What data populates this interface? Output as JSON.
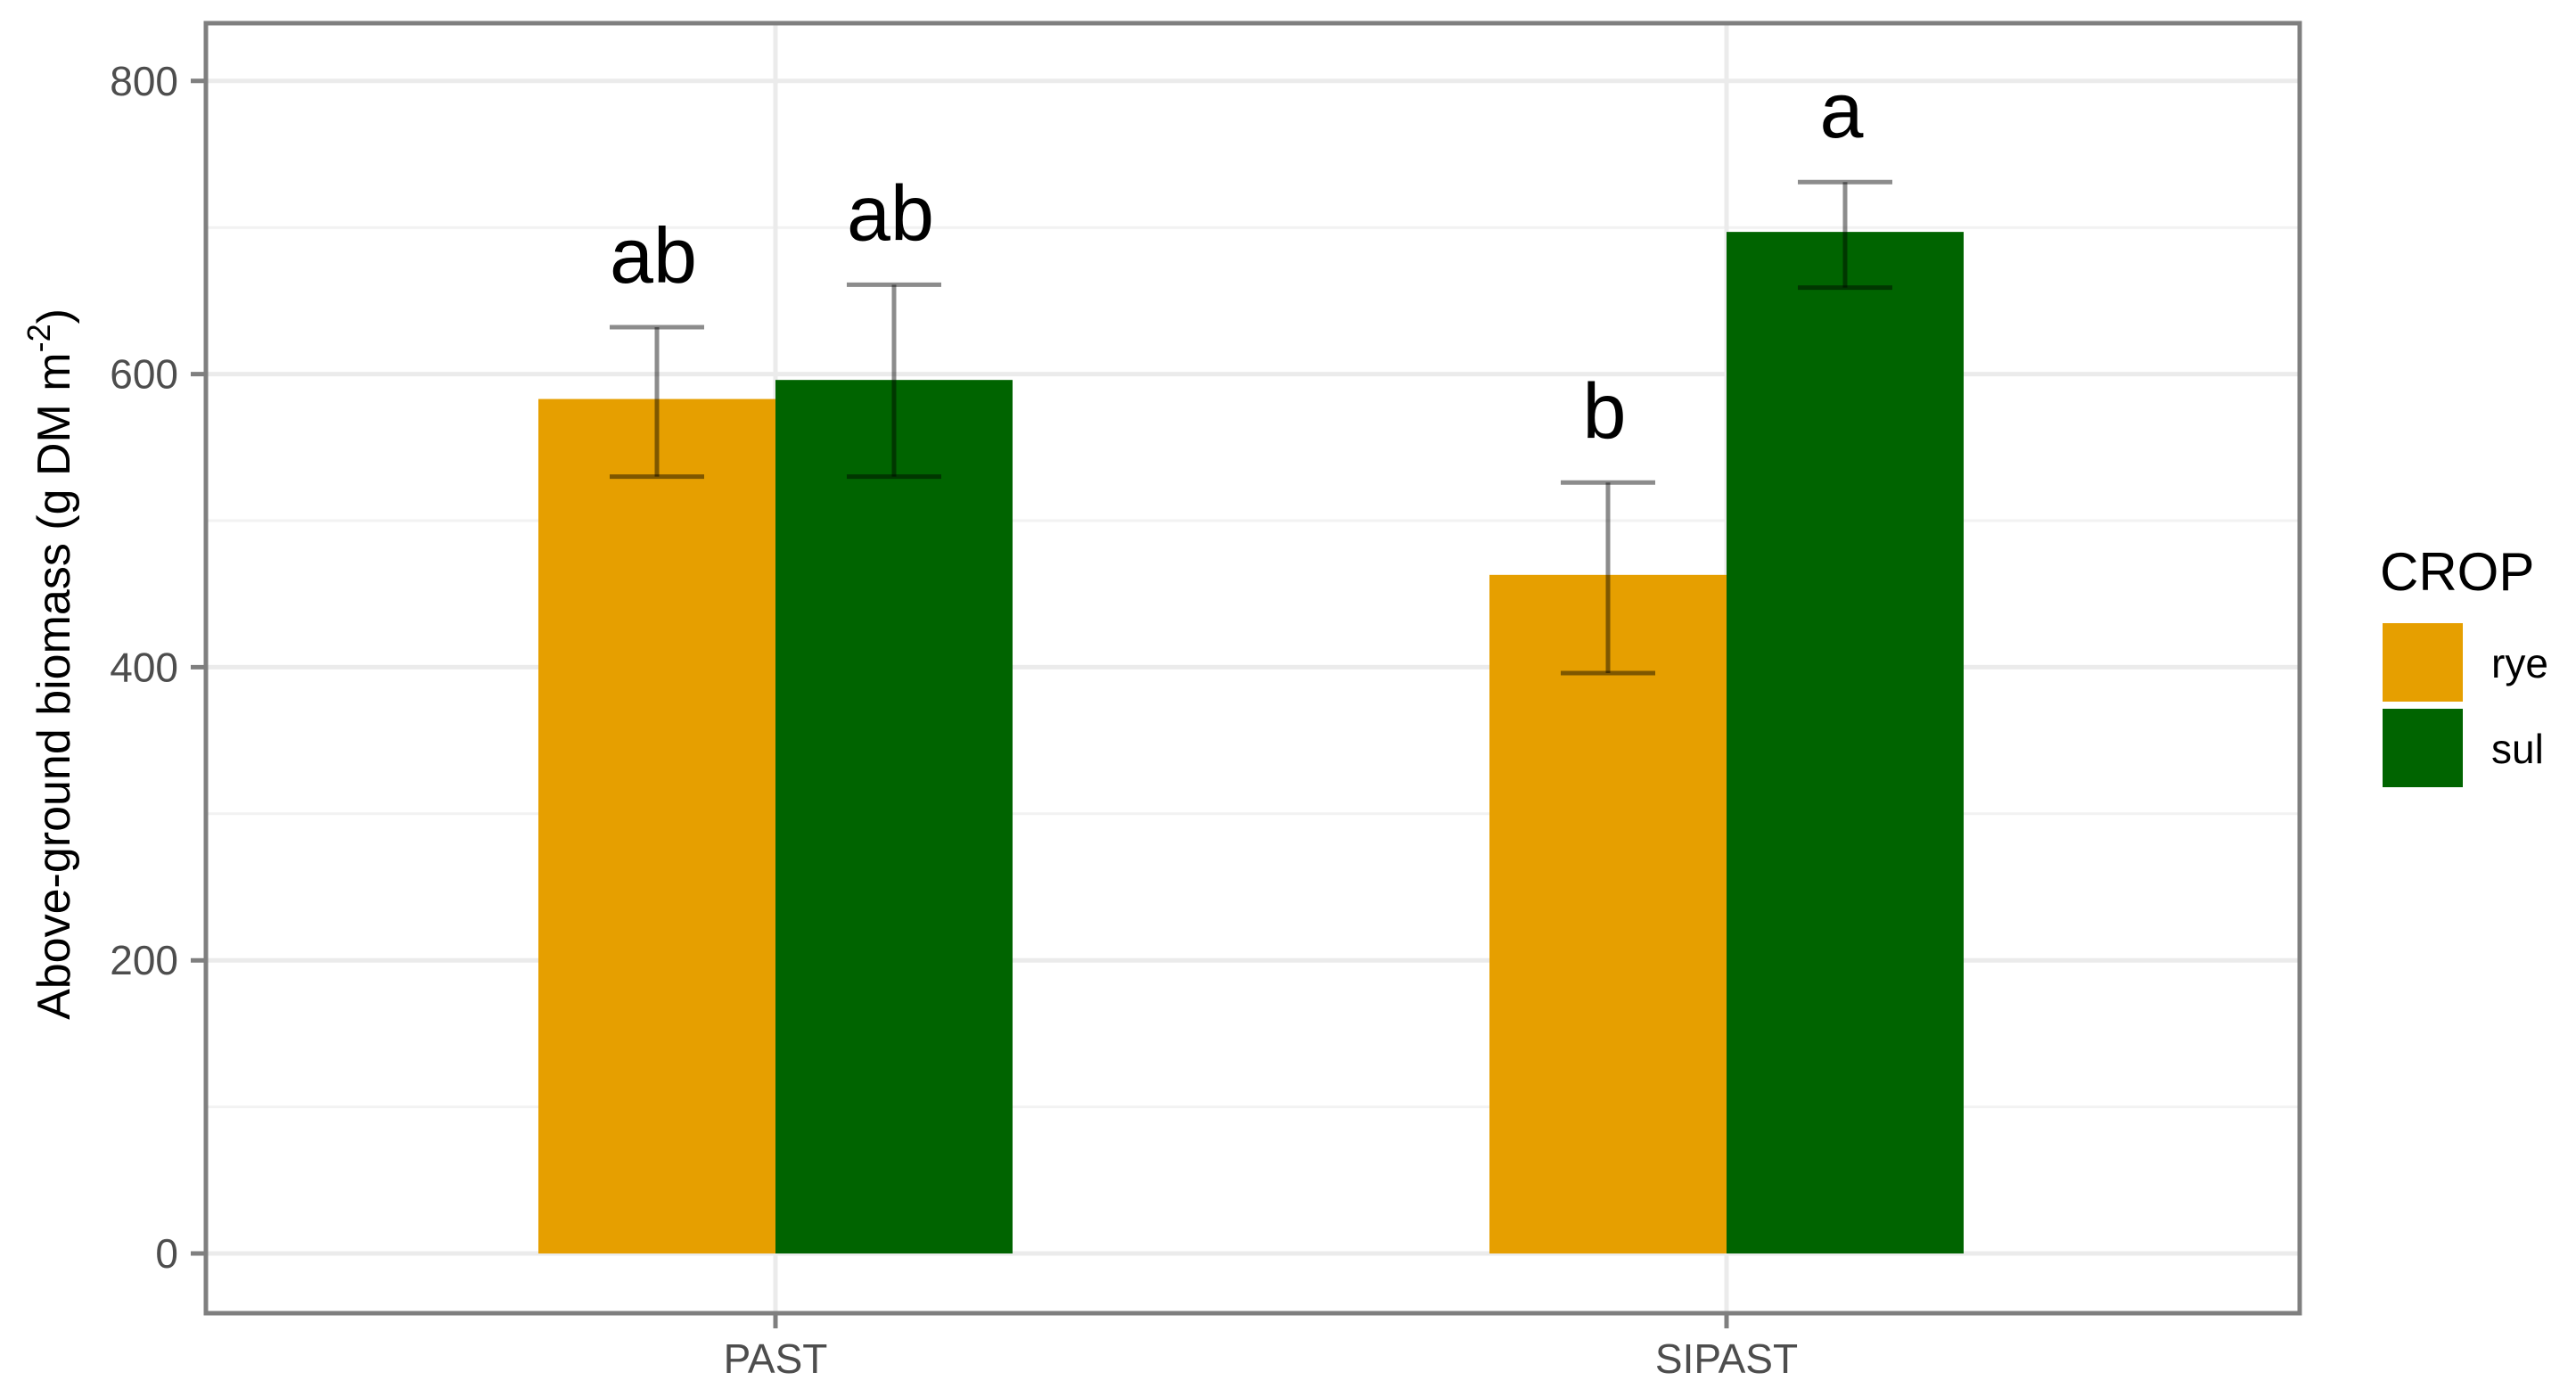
{
  "chart_data": {
    "type": "bar",
    "title": "",
    "xlabel": "",
    "ylabel": "Above-ground biomass  (g DM m",
    "ylabel_superscript": "-2",
    "ylabel_close": ")",
    "ylim": [
      0,
      800
    ],
    "yticks": [
      0,
      200,
      400,
      600,
      800
    ],
    "ytick_labels": [
      "0",
      "200",
      "400",
      "600",
      "800"
    ],
    "minor_gridlines": [
      100,
      300,
      500,
      700
    ],
    "grid": true,
    "categories": [
      "PAST",
      "SIPAST"
    ],
    "series": [
      {
        "name": "rye",
        "color": "#E69F00",
        "values": [
          583,
          463
        ],
        "error_low": [
          530,
          396
        ],
        "error_high": [
          632,
          526
        ],
        "significance": [
          "ab",
          "b"
        ]
      },
      {
        "name": "sul",
        "color": "#006400",
        "values": [
          596,
          697
        ],
        "error_low": [
          530,
          659
        ],
        "error_high": [
          661,
          731
        ],
        "significance": [
          "ab",
          "a"
        ]
      }
    ],
    "legend": {
      "title": "CROP",
      "position": "right",
      "entries": [
        "rye",
        "sul"
      ]
    }
  }
}
